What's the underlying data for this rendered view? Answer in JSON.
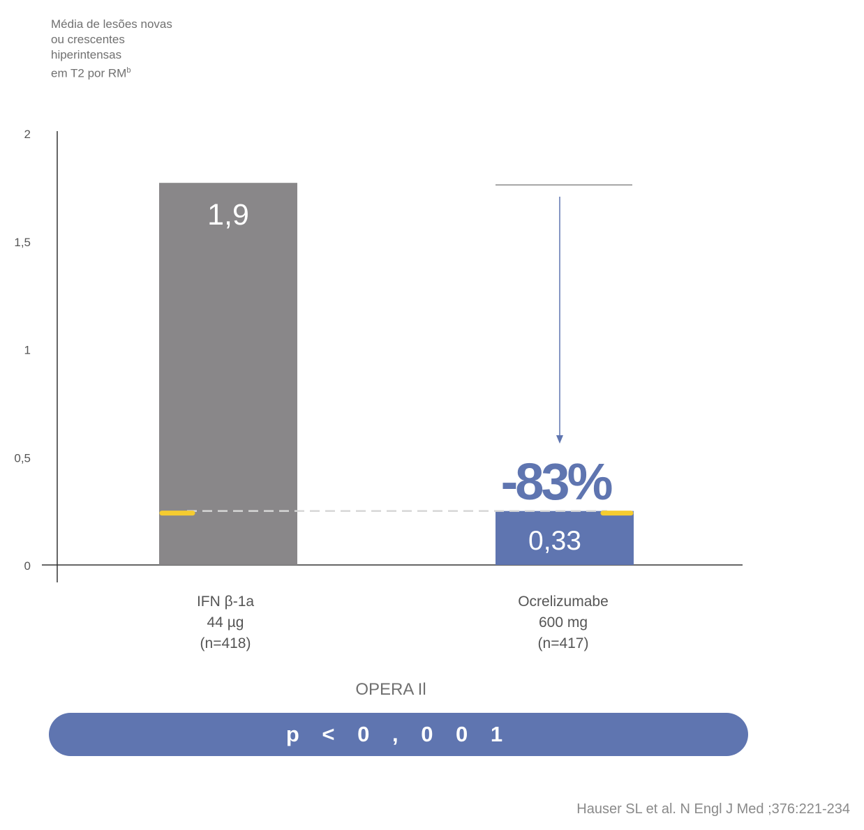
{
  "chart_data": {
    "type": "bar",
    "ylabel_lines": [
      "Média de lesões novas",
      "ou crescentes",
      "hiperintensas",
      "em T2 por RM"
    ],
    "ylabel_superscript": "b",
    "ylim": [
      0,
      2
    ],
    "yticks": [
      "0",
      "0,5",
      "1",
      "1,5",
      "2"
    ],
    "ytick_values": [
      0,
      0.5,
      1,
      1.5,
      2
    ],
    "categories": [
      [
        "IFN β-1a",
        "44 µg",
        "(n=418)"
      ],
      [
        "Ocrelizumabe",
        "600 mg",
        "(n=417)"
      ]
    ],
    "values": [
      1.9,
      0.33
    ],
    "bar_top_values": [
      1.77,
      0.25
    ],
    "value_labels": [
      "1,9",
      "0,33"
    ],
    "bar_colors": [
      "#898789",
      "#5f75b0"
    ],
    "reduction_label": "-83%",
    "reference_line_value": 0.25,
    "accent_color": "#f5cc30",
    "grid": false
  },
  "study_label": "OPERA Il",
  "p_value": "p < 0 , 0 0 1",
  "source": "Hauser SL et al. N Engl J Med ;376:221-234"
}
